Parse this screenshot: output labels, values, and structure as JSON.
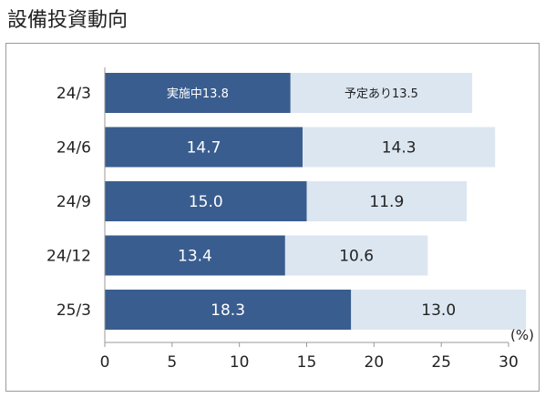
{
  "title": "設備投資動向",
  "unit": "(%)",
  "chart_data": {
    "type": "bar",
    "orientation": "horizontal",
    "stacked": true,
    "categories": [
      "24/3",
      "24/6",
      "24/9",
      "24/12",
      "25/3"
    ],
    "series": [
      {
        "name": "実施中",
        "color": "#3a5d8f",
        "values": [
          13.8,
          14.7,
          15.0,
          13.4,
          18.3
        ]
      },
      {
        "name": "予定あり",
        "color": "#dce6f1",
        "values": [
          13.5,
          14.3,
          11.9,
          10.6,
          13.0
        ]
      }
    ],
    "value_labels": [
      [
        "実施中13.8",
        "14.7",
        "15.0",
        "13.4",
        "18.3"
      ],
      [
        "予定あり13.5",
        "14.3",
        "11.9",
        "10.6",
        "13.0"
      ]
    ],
    "xlim": [
      0,
      30
    ],
    "xticks": [
      "0",
      "5",
      "10",
      "15",
      "20",
      "25",
      "30"
    ],
    "grid": false,
    "legend": "none"
  }
}
